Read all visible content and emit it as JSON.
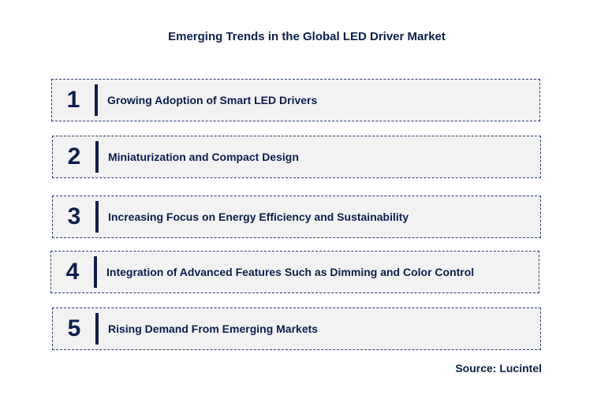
{
  "title": "Emerging Trends in the Global LED Driver Market",
  "trends": [
    {
      "number": "1",
      "label": "Growing Adoption of Smart LED Drivers"
    },
    {
      "number": "2",
      "label": "Miniaturization and Compact Design"
    },
    {
      "number": "3",
      "label": "Increasing Focus on Energy Efficiency and Sustainability"
    },
    {
      "number": "4",
      "label": "Integration of Advanced Features Such as Dimming and Color Control"
    },
    {
      "number": "5",
      "label": "Rising Demand From Emerging Markets"
    }
  ],
  "source": "Source: Lucintel",
  "colors": {
    "text": "#0b1f4f",
    "box_fill": "#f2f2f2",
    "border": "#2b3f6e"
  }
}
